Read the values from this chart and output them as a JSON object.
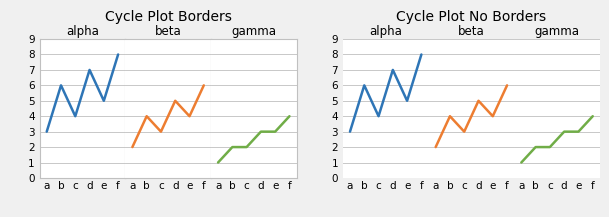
{
  "title_borders": "Cycle Plot Borders",
  "title_no_borders": "Cycle Plot No Borders",
  "groups": [
    "alpha",
    "beta",
    "gamma"
  ],
  "categories": [
    "a",
    "b",
    "c",
    "d",
    "e",
    "f"
  ],
  "series": {
    "alpha": [
      3,
      6,
      4,
      7,
      5,
      8
    ],
    "beta": [
      2,
      4,
      3,
      5,
      4,
      6
    ],
    "gamma": [
      1,
      2,
      2,
      3,
      3,
      4
    ]
  },
  "colors": {
    "alpha": "#2E75B6",
    "beta": "#ED7D31",
    "gamma": "#70AD47"
  },
  "ylim": [
    0,
    9
  ],
  "yticks": [
    0,
    1,
    2,
    3,
    4,
    5,
    6,
    7,
    8,
    9
  ],
  "background_color": "#F0F0F0",
  "plot_bg_color": "#FFFFFF",
  "grid_color": "#C8C8C8",
  "border_color": "#C0C0C0",
  "title_fontsize": 10,
  "group_label_fontsize": 8.5,
  "tick_fontsize": 7.5,
  "line_width": 1.8,
  "marker_size": 4.5
}
